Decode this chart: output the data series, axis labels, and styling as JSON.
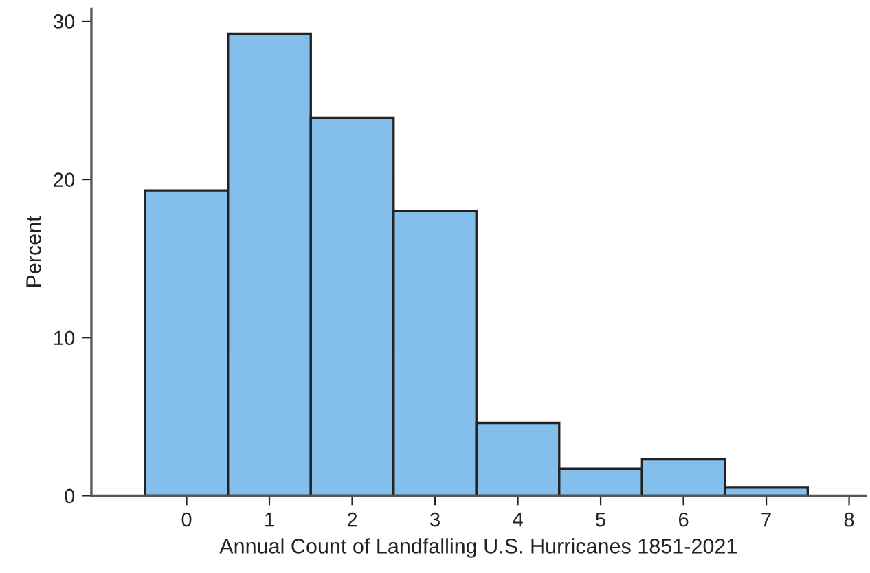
{
  "chart_data": {
    "type": "histogram",
    "xlabel": "Annual Count of Landfalling U.S. Hurricanes 1851-2021",
    "ylabel": "Percent",
    "bins": [
      -0.5,
      0.5,
      1.5,
      2.5,
      3.5,
      4.5,
      5.5,
      6.5,
      7.5
    ],
    "values": [
      19.3,
      29.2,
      23.9,
      18.0,
      4.6,
      1.7,
      2.3,
      0.5
    ],
    "color": "#83bfea",
    "xlim": [
      -1.15,
      8.2
    ],
    "xticks": [
      0,
      1,
      2,
      3,
      4,
      5,
      6,
      7,
      8
    ],
    "ylim": [
      0,
      30.8
    ],
    "yticks": [
      0,
      10,
      20,
      30
    ],
    "grid": false,
    "legend": false
  }
}
